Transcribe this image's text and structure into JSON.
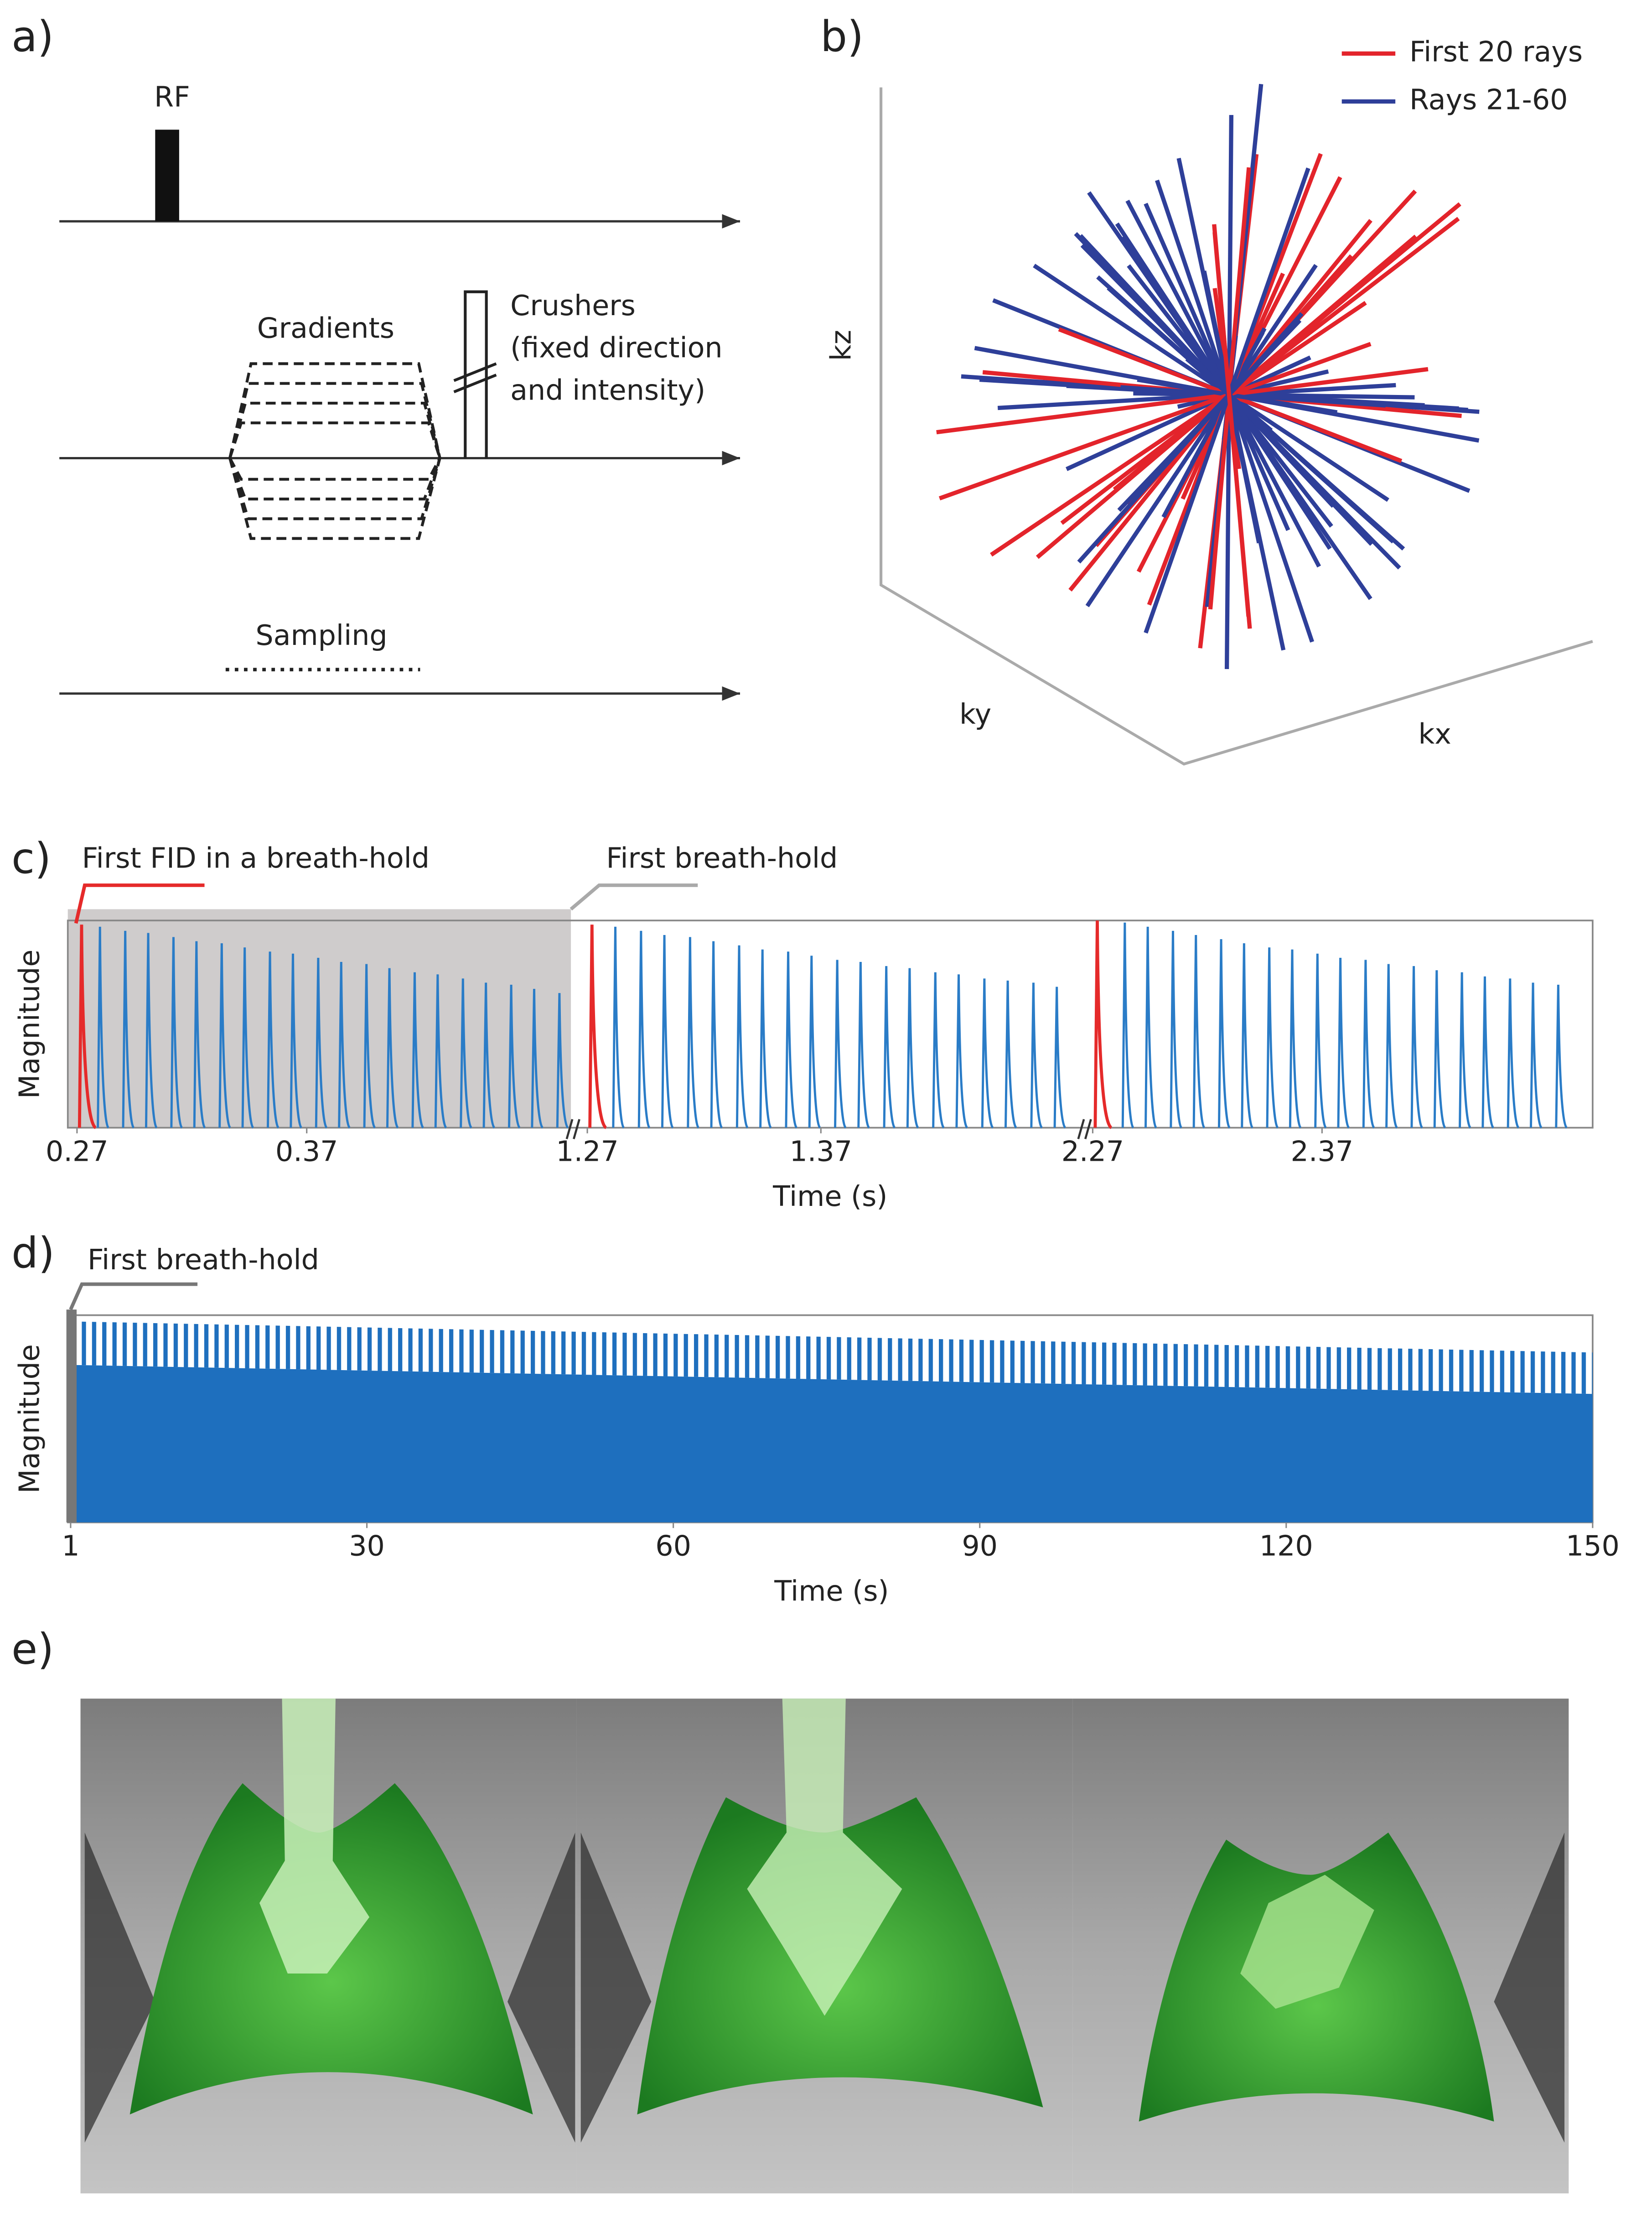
{
  "figure": {
    "a": {
      "label": "a)",
      "rf": "RF",
      "gradients": "Gradients",
      "crushers": [
        "Crushers",
        "(fixed direction",
        "and intensity)"
      ],
      "sampling": "Sampling"
    },
    "b": {
      "label": "b)",
      "z_axis": "kz",
      "y_axis": "ky",
      "x_axis": "kx",
      "legend": [
        {
          "name": "First 20 rays",
          "color": "#e3242b"
        },
        {
          "name": "Rays 21-60",
          "color": "#2e3f99"
        }
      ]
    },
    "e": {
      "label": "e)"
    }
  },
  "chart_data": [
    {
      "type": "fid",
      "panel_label": "c)",
      "y_label": "Magnitude",
      "x_label": "Time (s)",
      "ylim": [
        0,
        1
      ],
      "segments": [
        {
          "xlim": [
            0.266,
            0.485
          ],
          "xticks": [
            0.27,
            0.37
          ]
        },
        {
          "xlim": [
            1.266,
            1.482
          ],
          "xticks": [
            1.27,
            1.37
          ]
        },
        {
          "xlim": [
            2.268,
            2.488
          ],
          "xticks": [
            2.27,
            2.37
          ]
        }
      ],
      "highlight": {
        "text": "First breath-hold",
        "xlim": [
          0.266,
          0.485
        ],
        "color": "#a9a9a9"
      },
      "series": [
        {
          "name": "First FID in a breath-hold",
          "color": "#e52a2a",
          "x": [
            0.272,
            1.272,
            2.272
          ],
          "values": [
            0.98,
            0.98,
            1.0
          ]
        },
        {
          "color": "#2a7cc7",
          "x": [
            0.28,
            0.291,
            0.301,
            0.312,
            0.322,
            0.333,
            0.343,
            0.354,
            0.364,
            0.375,
            0.385,
            0.396,
            0.406,
            0.417,
            0.427,
            0.438,
            0.448,
            0.459,
            0.469,
            0.48,
            1.282,
            1.293,
            1.303,
            1.314,
            1.324,
            1.335,
            1.345,
            1.356,
            1.366,
            1.377,
            1.387,
            1.398,
            1.408,
            1.419,
            1.429,
            1.44,
            1.45,
            1.461,
            1.471,
            2.284,
            2.294,
            2.305,
            2.315,
            2.326,
            2.336,
            2.347,
            2.357,
            2.368,
            2.378,
            2.389,
            2.399,
            2.41,
            2.42,
            2.431,
            2.441,
            2.452,
            2.462,
            2.473
          ],
          "values": [
            0.97,
            0.95,
            0.94,
            0.92,
            0.9,
            0.89,
            0.87,
            0.85,
            0.84,
            0.82,
            0.8,
            0.79,
            0.77,
            0.75,
            0.74,
            0.72,
            0.7,
            0.69,
            0.67,
            0.65,
            0.97,
            0.95,
            0.93,
            0.92,
            0.9,
            0.88,
            0.86,
            0.85,
            0.83,
            0.81,
            0.8,
            0.78,
            0.77,
            0.75,
            0.74,
            0.72,
            0.71,
            0.7,
            0.68,
            0.99,
            0.97,
            0.95,
            0.93,
            0.91,
            0.89,
            0.87,
            0.86,
            0.84,
            0.82,
            0.81,
            0.79,
            0.78,
            0.76,
            0.75,
            0.73,
            0.72,
            0.7,
            0.69
          ]
        }
      ]
    },
    {
      "type": "area",
      "panel_label": "d)",
      "y_label": "Magnitude",
      "x_label": "Time (s)",
      "xlim": [
        1,
        150
      ],
      "xticks": [
        1,
        30,
        60,
        90,
        120,
        150
      ],
      "ylim": [
        0,
        1
      ],
      "highlight": {
        "text": "First breath-hold",
        "xlim": [
          1,
          2
        ],
        "color": "#777777"
      },
      "series": [
        {
          "color": "#1e6fbe",
          "x": [
            1,
            150
          ],
          "values": [
            0.97,
            0.82
          ]
        },
        {
          "color": "#1e6fbe",
          "x": [
            1,
            150
          ],
          "values": [
            0.76,
            0.62
          ]
        }
      ]
    }
  ]
}
